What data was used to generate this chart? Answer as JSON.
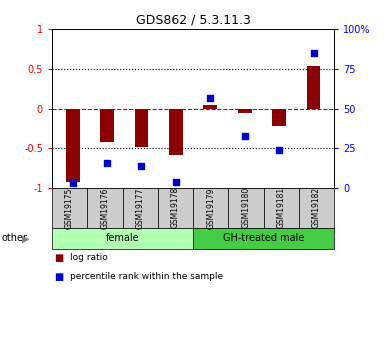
{
  "title": "GDS862 / 5.3.11.3",
  "samples": [
    "GSM19175",
    "GSM19176",
    "GSM19177",
    "GSM19178",
    "GSM19179",
    "GSM19180",
    "GSM19181",
    "GSM19182"
  ],
  "log_ratio": [
    -0.93,
    -0.42,
    -0.48,
    -0.58,
    0.05,
    -0.06,
    -0.22,
    0.54
  ],
  "percentile_rank": [
    3,
    16,
    14,
    4,
    57,
    33,
    24,
    85
  ],
  "groups": [
    {
      "label": "female",
      "start": 0,
      "end": 4,
      "color": "#b3ffb3"
    },
    {
      "label": "GH-treated male",
      "start": 4,
      "end": 8,
      "color": "#44cc44"
    }
  ],
  "ylim_left": [
    -1,
    1
  ],
  "ylim_right": [
    0,
    100
  ],
  "left_ticks": [
    -1,
    -0.5,
    0,
    0.5,
    1
  ],
  "right_ticks": [
    0,
    25,
    50,
    75,
    100
  ],
  "bar_color": "#8b0000",
  "dot_color": "#0000cc",
  "hline_color": "#cc0000",
  "dotted_color": "#000000",
  "legend_red": "log ratio",
  "legend_blue": "percentile rank within the sample",
  "other_label": "other",
  "bar_width": 0.4,
  "sample_box_color": "#cccccc",
  "fig_bg": "#ffffff"
}
